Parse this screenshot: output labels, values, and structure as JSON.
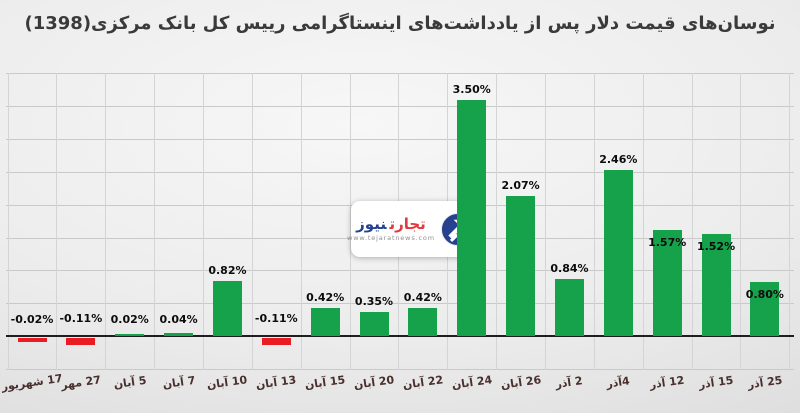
{
  "chart_data": {
    "type": "bar",
    "title": "نوسان‌های قیمت دلار پس از یادداشت‌های اینستاگرامی رییس کل بانک مرکزی(1398)",
    "categories": [
      "17 شهریور",
      "27 مهر",
      "5 آبان",
      "7 آبان",
      "10 آبان",
      "13 آبان",
      "15 آبان",
      "20 آبان",
      "22 آبان",
      "24 آبان",
      "26 آبان",
      "2 آذر",
      "4آذر",
      "12 آذر",
      "15 آذر",
      "25 آذر"
    ],
    "values": [
      -0.02,
      -0.11,
      0.02,
      0.04,
      0.82,
      -0.11,
      0.42,
      0.35,
      0.42,
      3.5,
      2.07,
      0.84,
      2.46,
      1.57,
      1.52,
      0.8
    ],
    "value_labels": [
      "-0.02%",
      "-0.11%",
      "0.02%",
      "0.04%",
      "0.82%",
      "-0.11%",
      "0.42%",
      "0.35%",
      "0.42%",
      "3.50%",
      "2.07%",
      "0.84%",
      "2.46%",
      "1.57%",
      "1.52%",
      "0.80%"
    ],
    "xlabel": "",
    "ylabel": "",
    "ylim": [
      -0.5,
      4.0
    ],
    "gridline_step_pct": 0.5,
    "grid": "on",
    "legend": "none",
    "positive_color": "#16a24b",
    "negative_color": "#ea1c23",
    "inside_label_indices": [
      13,
      14,
      15
    ]
  },
  "watermark": {
    "word_red": "تجارت",
    "word_blue": "نیوز",
    "url": "www.tejaratnews.com",
    "red_color": "#e13a3c",
    "blue_color": "#26418e"
  }
}
